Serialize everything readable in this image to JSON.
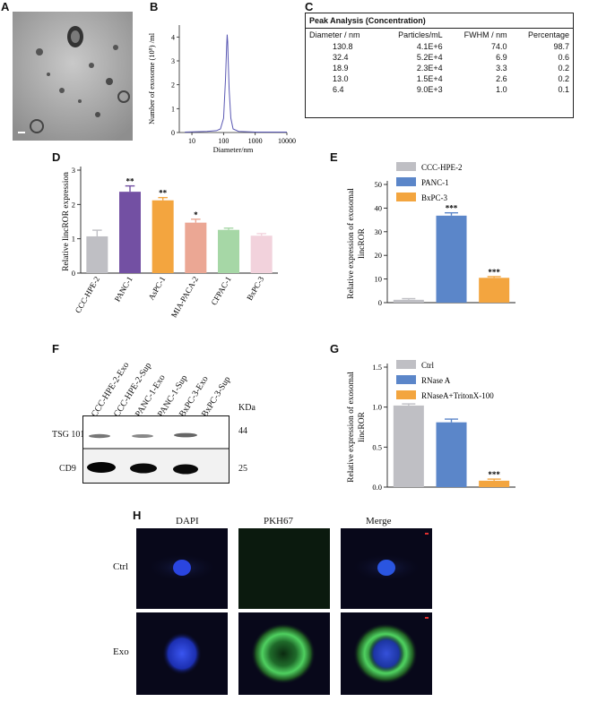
{
  "panels": {
    "a": "A",
    "b": "B",
    "c": "C",
    "d": "D",
    "e": "E",
    "f": "F",
    "g": "G",
    "h": "H"
  },
  "colors": {
    "purple": "#7350a3",
    "orange": "#f3a53f",
    "salmon": "#eba794",
    "green": "#a6d7a6",
    "pink": "#f2d2dc",
    "gray": "#bfbfc4",
    "blue": "#5b86c9",
    "line": "#5a58b3"
  },
  "chart_data": [
    {
      "id": "B",
      "type": "line",
      "xlabel": "Diameter/nm",
      "ylabel": "Number of exosome (10⁸) /ml",
      "x_scale": "log",
      "x_ticks": [
        "10",
        "100",
        "1000",
        "10000"
      ],
      "y_ticks": [
        "0",
        "1",
        "2",
        "3",
        "4"
      ],
      "ylim": [
        0,
        4.5
      ],
      "x": [
        6,
        30,
        60,
        80,
        100,
        115,
        125,
        130,
        135,
        140,
        150,
        170,
        200,
        300,
        1000,
        10000
      ],
      "y": [
        0.02,
        0.05,
        0.08,
        0.15,
        0.6,
        2.2,
        3.6,
        4.1,
        3.8,
        3.1,
        1.8,
        0.6,
        0.15,
        0.05,
        0.02,
        0.02
      ]
    },
    {
      "id": "D",
      "type": "bar",
      "ylabel": "Relative lincROR expression",
      "categories": [
        "CCC-HPE-2",
        "PANC-1",
        "AsPC-1",
        "MIA-PACA-2",
        "CFPAC-1",
        "BxPC-3"
      ],
      "values": [
        1.07,
        2.37,
        2.12,
        1.47,
        1.26,
        1.09
      ],
      "errors": [
        0.18,
        0.17,
        0.08,
        0.1,
        0.05,
        0.06
      ],
      "significance": [
        "",
        "**",
        "**",
        "*",
        "",
        ""
      ],
      "y_ticks": [
        "0",
        "1",
        "2",
        "3"
      ],
      "ylim": [
        0,
        3
      ]
    },
    {
      "id": "E",
      "type": "bar",
      "ylabel": "Relative expression of exosomal lincROR",
      "legend": [
        "CCC-HPE-2",
        "PANC-1",
        "BxPC-3"
      ],
      "values": [
        1.2,
        36.8,
        10.5
      ],
      "errors": [
        0.5,
        1.2,
        0.5
      ],
      "significance": [
        "",
        "***",
        "***"
      ],
      "y_ticks": [
        "0",
        "10",
        "20",
        "30",
        "40",
        "50"
      ],
      "ylim": [
        0,
        50
      ]
    },
    {
      "id": "G",
      "type": "bar",
      "ylabel": "Relative expression of exosomal lincROR",
      "legend": [
        "Ctrl",
        "RNase A",
        "RNaseA+TritonX-100"
      ],
      "values": [
        1.02,
        0.81,
        0.08
      ],
      "errors": [
        0.02,
        0.04,
        0.02
      ],
      "significance": [
        "",
        "",
        "***"
      ],
      "y_ticks": [
        "0.0",
        "0.5",
        "1.0",
        "1.5"
      ],
      "ylim": [
        0,
        1.5
      ]
    }
  ],
  "peak_analysis": {
    "title": "Peak Analysis (Concentration)",
    "headers": [
      "Diameter / nm",
      "Particles/mL",
      "FWHM / nm",
      "Percentage"
    ],
    "rows": [
      [
        "130.8",
        "4.1E+6",
        "74.0",
        "98.7"
      ],
      [
        "32.4",
        "5.2E+4",
        "6.9",
        "0.6"
      ],
      [
        "18.9",
        "2.3E+4",
        "3.3",
        "0.2"
      ],
      [
        "13.0",
        "1.5E+4",
        "2.6",
        "0.2"
      ],
      [
        "6.4",
        "9.0E+3",
        "1.0",
        "0.1"
      ]
    ]
  },
  "western_blot": {
    "lanes": [
      "CCC-HPE-2-Exo",
      "CCC-HPE-2-Sup",
      "PANC-1-Exo",
      "PANC-1-Sup",
      "BxPC-3-Exo",
      "BxPC-3-Sup"
    ],
    "unit": "KDa",
    "bands": [
      {
        "name": "TSG 101",
        "kda": "44"
      },
      {
        "name": "CD9",
        "kda": "25"
      }
    ]
  },
  "fluorescence": {
    "columns": [
      "DAPI",
      "PKH67",
      "Merge"
    ],
    "rows": [
      "Ctrl",
      "Exo"
    ]
  }
}
